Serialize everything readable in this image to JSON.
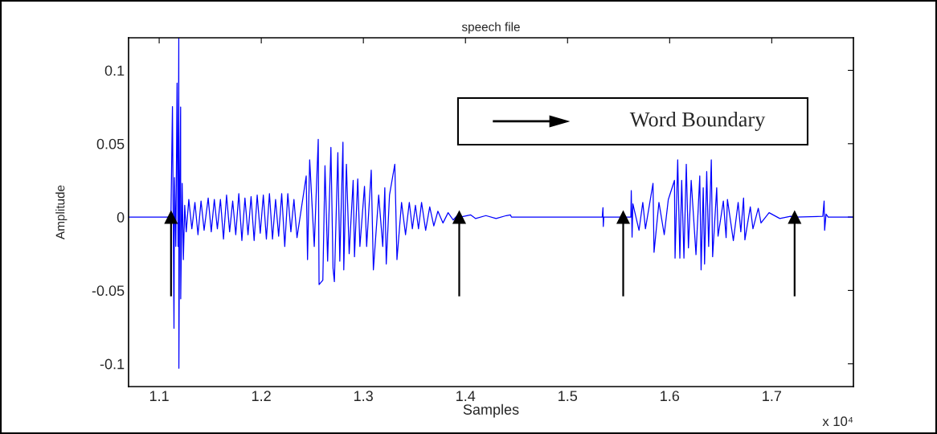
{
  "chart_data": {
    "type": "line",
    "title": "speech file",
    "xlabel": "Samples",
    "ylabel": "Amplitude",
    "xlim": [
      1.07,
      1.78
    ],
    "ylim": [
      -0.1155,
      0.1222
    ],
    "xticks": [
      1.1,
      1.2,
      1.3,
      1.4,
      1.5,
      1.6,
      1.7
    ],
    "yticks": [
      -0.1,
      -0.05,
      0,
      0.05,
      0.1
    ],
    "grid": false,
    "annotations": [
      "x 10⁴",
      "Word Boundary"
    ],
    "series": [
      {
        "color": "#0000ff",
        "x": [
          1.07,
          1.11,
          1.1115,
          1.113,
          1.1145,
          1.115,
          1.1163,
          1.1175,
          1.1185,
          1.1192,
          1.1193,
          1.12,
          1.121,
          1.1211,
          1.1225,
          1.1237,
          1.125,
          1.1265,
          1.129,
          1.132,
          1.135,
          1.138,
          1.141,
          1.144,
          1.148,
          1.151,
          1.154,
          1.157,
          1.16,
          1.163,
          1.166,
          1.169,
          1.172,
          1.175,
          1.178,
          1.181,
          1.184,
          1.187,
          1.19,
          1.193,
          1.196,
          1.199,
          1.202,
          1.205,
          1.208,
          1.211,
          1.214,
          1.217,
          1.22,
          1.223,
          1.226,
          1.229,
          1.232,
          1.235,
          1.244,
          1.2453,
          1.2474,
          1.2519,
          1.2558,
          1.2566,
          1.2603,
          1.2624,
          1.265,
          1.2682,
          1.2703,
          1.2716,
          1.275,
          1.2769,
          1.28,
          1.2808,
          1.2834,
          1.2861,
          1.29,
          1.2913,
          1.2945,
          1.2966,
          1.3011,
          1.3032,
          1.3077,
          1.3098,
          1.315,
          1.319,
          1.321,
          1.3224,
          1.3256,
          1.3308,
          1.3329,
          1.3374,
          1.3413,
          1.345,
          1.348,
          1.351,
          1.354,
          1.357,
          1.361,
          1.365,
          1.369,
          1.373,
          1.378,
          1.383,
          1.388,
          1.392,
          1.395,
          1.405,
          1.41,
          1.42,
          1.43,
          1.44,
          1.444,
          1.445,
          1.534,
          1.5347,
          1.535,
          1.5355,
          1.562,
          1.5624,
          1.5632,
          1.564,
          1.57,
          1.5737,
          1.5763,
          1.5837,
          1.5847,
          1.5895,
          1.5947,
          1.5987,
          1.6047,
          1.6053,
          1.6079,
          1.61,
          1.6118,
          1.614,
          1.6163,
          1.6184,
          1.6211,
          1.6258,
          1.6295,
          1.6308,
          1.6329,
          1.6342,
          1.6363,
          1.6382,
          1.6408,
          1.6421,
          1.6461,
          1.6474,
          1.6526,
          1.6553,
          1.6566,
          1.6624,
          1.6671,
          1.6697,
          1.6724,
          1.6737,
          1.679,
          1.6816,
          1.6868,
          1.6895,
          1.6974,
          1.7079,
          1.7184,
          1.7237,
          1.75,
          1.7513,
          1.7518,
          1.7532,
          1.7553,
          1.78
        ],
        "values": [
          0,
          0,
          0,
          0.0753,
          -0.0758,
          0.027,
          -0.02,
          0.0913,
          -0.02,
          0.122,
          -0.103,
          0.01,
          0.075,
          -0.0557,
          0.023,
          -0.029,
          0.008,
          -0.01,
          0.012,
          -0.008,
          0.01,
          -0.012,
          0.011,
          -0.009,
          0.013,
          -0.01,
          0.012,
          -0.008,
          0.012,
          -0.015,
          0.015,
          -0.01,
          0.011,
          -0.012,
          0.016,
          -0.016,
          0.013,
          -0.012,
          0.014,
          -0.016,
          0.015,
          -0.011,
          0.015,
          -0.015,
          0.016,
          -0.015,
          0.012,
          -0.013,
          0.016,
          -0.02,
          0.016,
          -0.01,
          0.012,
          -0.014,
          0.028,
          -0.029,
          0.039,
          -0.02,
          0.053,
          -0.046,
          -0.043,
          0.035,
          -0.03,
          0.0475,
          -0.035,
          -0.044,
          0.044,
          -0.03,
          0.051,
          -0.036,
          0.036,
          -0.025,
          0.025,
          -0.027,
          0.026,
          -0.02,
          0.021,
          -0.02,
          0.032,
          -0.036,
          0.015,
          -0.02,
          0.02,
          -0.032,
          0.015,
          0.036,
          -0.029,
          0.01,
          -0.012,
          0.01,
          -0.008,
          0.008,
          -0.008,
          0.01,
          -0.009,
          0.007,
          -0.006,
          0.004,
          -0.004,
          0.003,
          -0.002,
          0.001,
          0,
          0.0015,
          -0.001,
          0.001,
          -0.001,
          0.001,
          0.0015,
          0,
          0,
          0.0064,
          -0.0064,
          0,
          0,
          0.018,
          -0.0137,
          0.009,
          -0.009,
          0.01,
          -0.008,
          0.023,
          -0.024,
          0.01,
          -0.012,
          0.012,
          0.025,
          -0.028,
          0.039,
          -0.028,
          0.025,
          -0.028,
          0.036,
          -0.021,
          0.025,
          -0.0256,
          0.028,
          -0.036,
          0.02,
          -0.032,
          0.031,
          -0.02,
          0.039,
          -0.027,
          0.02,
          -0.013,
          0.011,
          -0.014,
          0.012,
          -0.016,
          0.01,
          -0.01,
          0.013,
          -0.0155,
          0.007,
          -0.008,
          0.006,
          -0.004,
          0.003,
          -0.001,
          0.0005,
          0,
          0.0005,
          0.011,
          -0.009,
          0.002,
          0,
          0
        ]
      },
      {
        "type": "scatter",
        "color": "#000000",
        "marker": "triangle",
        "x": [
          1.1116,
          1.3939,
          1.5545,
          1.7224
        ],
        "values": [
          0,
          0,
          0,
          0
        ],
        "errors": [
          [
            -0.054,
            0
          ],
          [
            -0.054,
            0
          ],
          [
            -0.054,
            0
          ],
          [
            -0.054,
            0
          ]
        ]
      }
    ]
  }
}
